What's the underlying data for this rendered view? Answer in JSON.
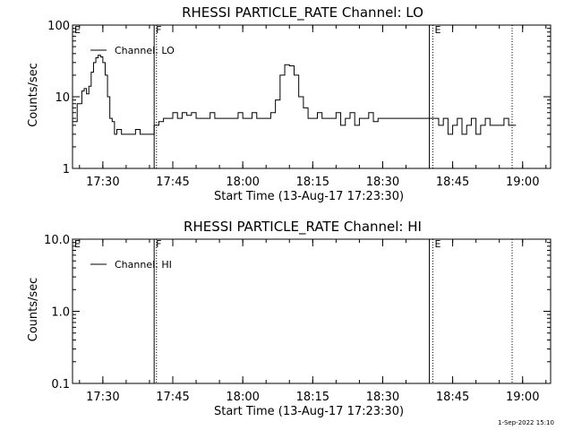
{
  "footer": {
    "timestamp": "1-Sep-2022 15:10"
  },
  "chart_data": [
    {
      "type": "line",
      "title": "RHESSI PARTICLE_RATE Channel: LO",
      "xlabel": "Start Time (13-Aug-17 17:23:30)",
      "ylabel": "Counts/sec",
      "yscale": "log",
      "ylim": [
        1,
        100
      ],
      "xlim": [
        "17:23:30",
        "19:06:00"
      ],
      "x_ticks": [
        "17:30",
        "17:45",
        "18:00",
        "18:15",
        "18:30",
        "18:45",
        "19:00"
      ],
      "y_ticks": [
        "1",
        "10",
        "100"
      ],
      "legend": {
        "entries": [
          "Channel: LO"
        ],
        "placement": "top-left"
      },
      "markers": [
        {
          "label": "E",
          "time": "17:23:30",
          "style": "dotted"
        },
        {
          "label": "F",
          "time": "17:41:00",
          "style": "solid"
        },
        {
          "label": "",
          "time": "17:41:30",
          "style": "dotted"
        },
        {
          "label": "",
          "time": "18:40:00",
          "style": "solid"
        },
        {
          "label": "E",
          "time": "18:40:45",
          "style": "dotted"
        },
        {
          "label": "",
          "time": "18:57:45",
          "style": "dotted"
        }
      ],
      "series": [
        {
          "name": "Channel: LO",
          "x": [
            "17:23:30",
            "17:24:30",
            "17:25:30",
            "17:26:00",
            "17:26:30",
            "17:27:00",
            "17:27:30",
            "17:28:00",
            "17:28:30",
            "17:29:00",
            "17:29:30",
            "17:30:00",
            "17:30:30",
            "17:31:00",
            "17:31:30",
            "17:32:00",
            "17:32:30",
            "17:33:00",
            "17:34:00",
            "17:35:00",
            "17:36:00",
            "17:37:00",
            "17:38:00",
            "17:39:00",
            "17:40:00",
            "17:41:00",
            "17:42:00",
            "17:43:00",
            "17:44:00",
            "17:45:00",
            "17:46:00",
            "17:47:00",
            "17:48:00",
            "17:49:00",
            "17:50:00",
            "17:51:00",
            "17:52:00",
            "17:53:00",
            "17:54:00",
            "17:55:00",
            "17:56:00",
            "17:57:00",
            "17:58:00",
            "17:59:00",
            "18:00:00",
            "18:01:00",
            "18:02:00",
            "18:03:00",
            "18:04:00",
            "18:05:00",
            "18:06:00",
            "18:07:00",
            "18:08:00",
            "18:09:00",
            "18:10:00",
            "18:11:00",
            "18:12:00",
            "18:13:00",
            "18:14:00",
            "18:15:00",
            "18:16:00",
            "18:17:00",
            "18:18:00",
            "18:19:00",
            "18:20:00",
            "18:21:00",
            "18:22:00",
            "18:23:00",
            "18:24:00",
            "18:25:00",
            "18:26:00",
            "18:27:00",
            "18:28:00",
            "18:29:00",
            "18:30:00",
            "18:32:00",
            "18:34:00",
            "18:36:00",
            "18:38:00",
            "18:40:00",
            "18:41:00",
            "18:42:00",
            "18:43:00",
            "18:44:00",
            "18:45:00",
            "18:46:00",
            "18:47:00",
            "18:48:00",
            "18:49:00",
            "18:50:00",
            "18:51:00",
            "18:52:00",
            "18:53:00",
            "18:54:00",
            "18:55:00",
            "18:56:00",
            "18:57:00",
            "18:58:00"
          ],
          "y": [
            4.5,
            8,
            12,
            13,
            11,
            14,
            22,
            30,
            35,
            38,
            36,
            30,
            20,
            10,
            5,
            4.5,
            3,
            3.5,
            3,
            3,
            3,
            3.5,
            3,
            3,
            3,
            4,
            4.5,
            5,
            5,
            6,
            5,
            6,
            5.5,
            6,
            5,
            5,
            5,
            6,
            5,
            5,
            5,
            5,
            5,
            6,
            5,
            5,
            6,
            5,
            5,
            5,
            6,
            9,
            20,
            28,
            27,
            20,
            10,
            7,
            5,
            5,
            6,
            5,
            5,
            5,
            6,
            4,
            5,
            6,
            4,
            5,
            5,
            6,
            4.5,
            5,
            5,
            5,
            5,
            5,
            5,
            5,
            5,
            4,
            5,
            3,
            4,
            5,
            3,
            4,
            5,
            3,
            4,
            5,
            4,
            4,
            4,
            5,
            4,
            4
          ]
        }
      ]
    },
    {
      "type": "line",
      "title": "RHESSI PARTICLE_RATE Channel: HI",
      "xlabel": "Start Time (13-Aug-17 17:23:30)",
      "ylabel": "Counts/sec",
      "yscale": "log",
      "ylim": [
        0.1,
        10
      ],
      "xlim": [
        "17:23:30",
        "19:06:00"
      ],
      "x_ticks": [
        "17:30",
        "17:45",
        "18:00",
        "18:15",
        "18:30",
        "18:45",
        "19:00"
      ],
      "y_ticks": [
        "0.1",
        "1.0",
        "10.0"
      ],
      "legend": {
        "entries": [
          "Channel: HI"
        ],
        "placement": "top-left"
      },
      "markers": [
        {
          "label": "E",
          "time": "17:23:30",
          "style": "dotted"
        },
        {
          "label": "F",
          "time": "17:41:00",
          "style": "solid"
        },
        {
          "label": "",
          "time": "17:41:30",
          "style": "dotted"
        },
        {
          "label": "",
          "time": "18:40:00",
          "style": "solid"
        },
        {
          "label": "E",
          "time": "18:40:45",
          "style": "dotted"
        },
        {
          "label": "",
          "time": "18:57:45",
          "style": "dotted"
        }
      ],
      "series": []
    }
  ]
}
